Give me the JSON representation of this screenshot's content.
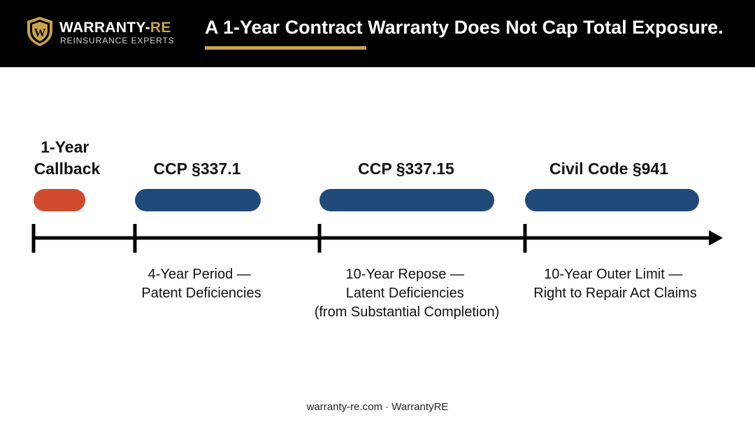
{
  "brand": {
    "name_main": "WARRANTY-",
    "name_accent": "RE",
    "tagline": "REINSURANCE EXPERTS",
    "logo_letter": "W"
  },
  "title": "A 1-Year Contract Warranty Does Not Cap Total Exposure.",
  "timeline": {
    "periods": [
      {
        "label_lines": [
          "1-Year",
          "Callback"
        ],
        "color": "#d14b2f",
        "description_lines": []
      },
      {
        "label_lines": [
          "CCP §337.1"
        ],
        "color": "#1f4a7a",
        "description_lines": [
          "4-Year Period —",
          "Patent Deficiencies"
        ]
      },
      {
        "label_lines": [
          "CCP §337.15"
        ],
        "color": "#1f4a7a",
        "description_lines": [
          "10-Year Repose —",
          "Latent Deficiencies",
          "(from Substantial Completion)"
        ]
      },
      {
        "label_lines": [
          "Civil Code §941"
        ],
        "color": "#1f4a7a",
        "description_lines": [
          "10-Year Outer Limit —",
          "Right to Repair Act Claims"
        ]
      }
    ]
  },
  "colors": {
    "header_bg": "#000000",
    "accent_gold": "#c9a24a",
    "callback_red": "#d14b2f",
    "statute_blue": "#1f4a7a"
  },
  "footer": "warranty-re.com · WarrantyRE"
}
